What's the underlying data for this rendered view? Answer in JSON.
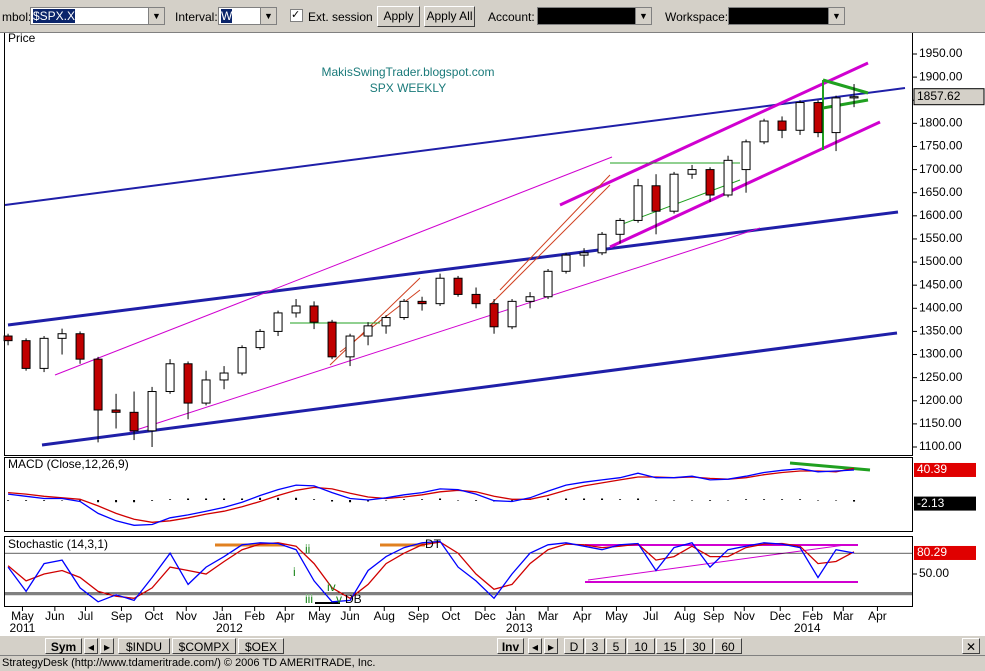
{
  "toolbar": {
    "symbol_label": "mbol:",
    "symbol": "$SPX.X",
    "interval_label": "Interval:",
    "interval": "W",
    "ext_session": "Ext. session",
    "apply": "Apply",
    "apply_all": "Apply All",
    "account_label": "Account:",
    "workspace_label": "Workspace:"
  },
  "chart_data": [
    {
      "type": "candlestick",
      "title": "Price",
      "annotations": [
        "MakisSwingTrader.blogspot.com",
        "SPX WEEKLY"
      ],
      "open": [
        1340,
        1330,
        1270,
        1335,
        1345,
        1290,
        1180,
        1175,
        1135,
        1220,
        1280,
        1195,
        1245,
        1260,
        1315,
        1350,
        1390,
        1405,
        1370,
        1295,
        1340,
        1362,
        1380,
        1415,
        1410,
        1465,
        1430,
        1410,
        1360,
        1415,
        1425,
        1480,
        1515,
        1520,
        1560,
        1590,
        1665,
        1610,
        1690,
        1700,
        1645,
        1700,
        1760,
        1805,
        1785,
        1845,
        1780,
        1855
      ],
      "high": [
        1345,
        1335,
        1340,
        1356,
        1350,
        1295,
        1215,
        1220,
        1230,
        1290,
        1285,
        1265,
        1275,
        1320,
        1355,
        1395,
        1420,
        1415,
        1375,
        1345,
        1370,
        1385,
        1420,
        1425,
        1475,
        1470,
        1445,
        1420,
        1420,
        1435,
        1485,
        1520,
        1530,
        1565,
        1595,
        1680,
        1690,
        1695,
        1710,
        1705,
        1730,
        1765,
        1810,
        1815,
        1850,
        1850,
        1860,
        1885
      ],
      "low": [
        1320,
        1265,
        1262,
        1300,
        1280,
        1110,
        1140,
        1115,
        1100,
        1215,
        1160,
        1190,
        1225,
        1255,
        1310,
        1340,
        1380,
        1355,
        1290,
        1275,
        1320,
        1345,
        1375,
        1395,
        1405,
        1425,
        1400,
        1345,
        1355,
        1400,
        1420,
        1475,
        1490,
        1515,
        1540,
        1585,
        1560,
        1605,
        1680,
        1630,
        1640,
        1650,
        1755,
        1768,
        1775,
        1770,
        1740,
        1835
      ],
      "close": [
        1330,
        1270,
        1335,
        1345,
        1290,
        1180,
        1175,
        1135,
        1220,
        1280,
        1195,
        1245,
        1260,
        1315,
        1350,
        1390,
        1405,
        1370,
        1295,
        1340,
        1362,
        1380,
        1415,
        1410,
        1465,
        1430,
        1410,
        1360,
        1415,
        1425,
        1480,
        1515,
        1520,
        1560,
        1590,
        1665,
        1610,
        1690,
        1700,
        1645,
        1720,
        1760,
        1805,
        1785,
        1845,
        1780,
        1855,
        1857.62
      ],
      "up_color": "#ffffff",
      "down_color": "#c00000",
      "xlim": [
        -0.17,
        50.22
      ],
      "ylim": [
        1082.7,
        1995.4
      ],
      "yticks": [
        {
          "value": 1950,
          "label": "1950.00"
        },
        {
          "value": 1900,
          "label": "1900.00"
        },
        {
          "value": 1850,
          "label": "1850.00"
        },
        {
          "value": 1800,
          "label": "1800.00"
        },
        {
          "value": 1750,
          "label": "1750.00"
        },
        {
          "value": 1700,
          "label": "1700.00"
        },
        {
          "value": 1650,
          "label": "1650.00"
        },
        {
          "value": 1600,
          "label": "1600.00"
        },
        {
          "value": 1550,
          "label": "1550.00"
        },
        {
          "value": 1500,
          "label": "1500.00"
        },
        {
          "value": 1450,
          "label": "1450.00"
        },
        {
          "value": 1400,
          "label": "1400.00"
        },
        {
          "value": 1350,
          "label": "1350.00"
        },
        {
          "value": 1300,
          "label": "1300.00"
        },
        {
          "value": 1250,
          "label": "1250.00"
        },
        {
          "value": 1200,
          "label": "1200.00"
        },
        {
          "value": 1150,
          "label": "1150.00"
        },
        {
          "value": 1100,
          "label": "1100.00"
        }
      ],
      "last_price": 1857.62
    },
    {
      "type": "macd",
      "title": "MACD (Close,12,26,9)",
      "macd": {
        "color": "#0000ff",
        "values": [
          8,
          5,
          2,
          2,
          -2,
          -18,
          -28,
          -34,
          -33,
          -24,
          -20,
          -15,
          -10,
          -3,
          6,
          14,
          20,
          19,
          10,
          2,
          0,
          3,
          7,
          10,
          15,
          14,
          8,
          -1,
          -2,
          3,
          12,
          20,
          24,
          27,
          30,
          36,
          30,
          30,
          32,
          27,
          28,
          32,
          37,
          40,
          42,
          38,
          39,
          40.39
        ]
      },
      "signal": {
        "color": "#d00000",
        "values": [
          10,
          8,
          5,
          3,
          1,
          -8,
          -18,
          -26,
          -30,
          -28,
          -24,
          -19,
          -15,
          -9,
          -2,
          6,
          13,
          17,
          15,
          9,
          4,
          2,
          4,
          7,
          11,
          13,
          11,
          5,
          1,
          1,
          6,
          13,
          19,
          23,
          27,
          31,
          31,
          30,
          31,
          29,
          28,
          30,
          34,
          37,
          39,
          39,
          38,
          42.5
        ]
      },
      "histogram": {
        "color": "#000000",
        "values": [
          -1,
          -1,
          -1,
          0,
          -1,
          -3,
          -3,
          -3,
          -1,
          1,
          2,
          2,
          2,
          2,
          3,
          3,
          3,
          1,
          -2,
          -3,
          -2,
          0,
          1,
          1,
          2,
          0,
          -1,
          -2,
          -1,
          1,
          2,
          2,
          2,
          2,
          1,
          2,
          0,
          0,
          0,
          -1,
          0,
          1,
          1,
          1,
          1,
          0,
          0,
          -2.13
        ]
      },
      "xlim": [
        -0.17,
        50.22
      ],
      "ylim": [
        -41.7,
        56.5
      ]
    },
    {
      "type": "stochastic",
      "title": "Stochastic (14,3,1)",
      "k": {
        "color": "#0000ff",
        "values": [
          60,
          25,
          65,
          70,
          30,
          10,
          20,
          12,
          45,
          80,
          35,
          60,
          75,
          92,
          95,
          94,
          85,
          40,
          10,
          12,
          55,
          75,
          88,
          95,
          97,
          60,
          40,
          15,
          50,
          80,
          92,
          95,
          90,
          85,
          92,
          94,
          55,
          88,
          95,
          60,
          85,
          90,
          95,
          93,
          88,
          45,
          85,
          80.29
        ]
      },
      "d": {
        "color": "#d00000",
        "values": [
          62,
          40,
          50,
          55,
          45,
          25,
          18,
          15,
          30,
          60,
          55,
          50,
          68,
          85,
          93,
          95,
          90,
          65,
          30,
          15,
          35,
          65,
          80,
          92,
          96,
          80,
          50,
          28,
          35,
          65,
          85,
          93,
          92,
          88,
          90,
          93,
          70,
          75,
          90,
          75,
          75,
          88,
          93,
          94,
          90,
          65,
          68,
          82
        ]
      },
      "levels": [
        80,
        20
      ],
      "annotations": [
        "DT",
        "DB",
        "i",
        "ii",
        "iii",
        "iv",
        "v"
      ],
      "xlim": [
        -0.17,
        50.22
      ],
      "ylim": [
        3.9,
        103.3
      ],
      "yticks": [
        {
          "value": 50,
          "label": "50.00"
        }
      ],
      "xticks": [
        {
          "value": 0.8,
          "label": "May"
        },
        {
          "value": 2.6,
          "label": "Jun"
        },
        {
          "value": 4.3,
          "label": "Jul"
        },
        {
          "value": 6.3,
          "label": "Sep"
        },
        {
          "value": 8.1,
          "label": "Oct"
        },
        {
          "value": 9.9,
          "label": "Nov"
        },
        {
          "value": 11.9,
          "label": "Jan"
        },
        {
          "value": 13.7,
          "label": "Feb"
        },
        {
          "value": 15.4,
          "label": "Apr"
        },
        {
          "value": 17.3,
          "label": "May"
        },
        {
          "value": 19,
          "label": "Jun"
        },
        {
          "value": 20.9,
          "label": "Aug"
        },
        {
          "value": 22.8,
          "label": "Sep"
        },
        {
          "value": 24.6,
          "label": "Oct"
        },
        {
          "value": 26.5,
          "label": "Dec"
        },
        {
          "value": 28.2,
          "label": "Jan"
        },
        {
          "value": 30,
          "label": "Mar"
        },
        {
          "value": 31.9,
          "label": "Apr"
        },
        {
          "value": 33.8,
          "label": "May"
        },
        {
          "value": 35.7,
          "label": "Jul"
        },
        {
          "value": 37.6,
          "label": "Aug"
        },
        {
          "value": 39.2,
          "label": "Sep"
        },
        {
          "value": 40.9,
          "label": "Nov"
        },
        {
          "value": 42.9,
          "label": "Dec"
        },
        {
          "value": 44.7,
          "label": "Feb"
        },
        {
          "value": 46.4,
          "label": "Mar"
        },
        {
          "value": 48.3,
          "label": "Apr"
        }
      ],
      "year_ticks": [
        {
          "value": 0.8,
          "label": "2011"
        },
        {
          "value": 12.3,
          "label": "2012"
        },
        {
          "value": 28.4,
          "label": "2013"
        },
        {
          "value": 44.4,
          "label": "2014"
        }
      ]
    }
  ],
  "tabs": {
    "sym": "Sym",
    "symbols": [
      "$INDU",
      "$COMPX",
      "$OEX"
    ],
    "inv": "Inv",
    "intervals": [
      "D",
      "3",
      "5",
      "10",
      "15",
      "30",
      "60"
    ]
  },
  "status": "StrategyDesk (http://www.tdameritrade.com/) © 2006 TD AMERITRADE, Inc."
}
